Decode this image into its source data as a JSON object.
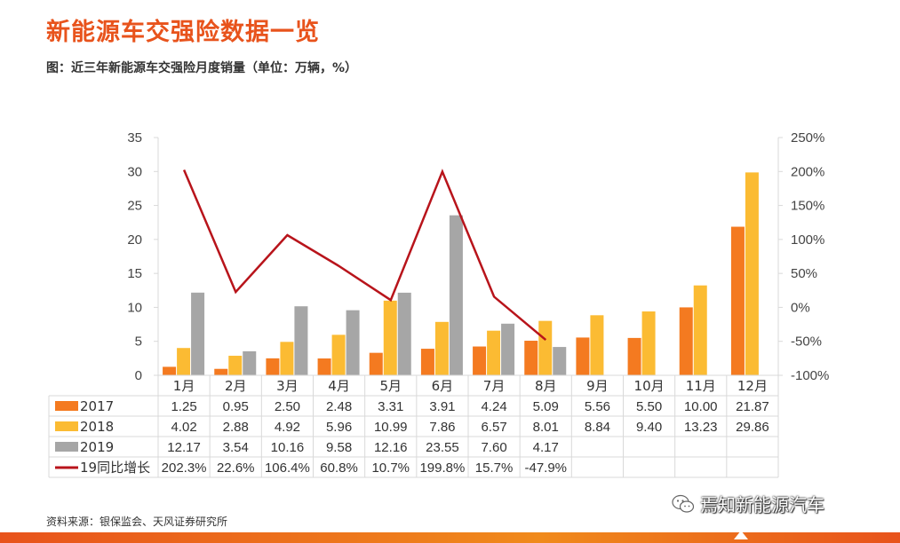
{
  "title": "新能源车交强险数据一览",
  "subtitle": "图：近三年新能源车交强险月度销量（单位：万辆，%）",
  "source": "资料来源：银保监会、天风证券研究所",
  "watermark": "焉知新能源汽车",
  "colors": {
    "title": "#e8531c",
    "s2017": "#f47a20",
    "s2018": "#fbbb33",
    "s2019": "#a6a6a6",
    "growth": "#b8141b",
    "grid": "#d9d9d9"
  },
  "chart_data": {
    "type": "bar",
    "categories": [
      "1月",
      "2月",
      "3月",
      "4月",
      "5月",
      "6月",
      "7月",
      "8月",
      "9月",
      "10月",
      "11月",
      "12月"
    ],
    "series": [
      {
        "name": "2017",
        "type": "bar",
        "values": [
          1.25,
          0.95,
          2.5,
          2.48,
          3.31,
          3.91,
          4.24,
          5.09,
          5.56,
          5.5,
          10.0,
          21.87
        ],
        "labels": [
          "1.25",
          "0.95",
          "2.50",
          "2.48",
          "3.31",
          "3.91",
          "4.24",
          "5.09",
          "5.56",
          "5.50",
          "10.00",
          "21.87"
        ]
      },
      {
        "name": "2018",
        "type": "bar",
        "values": [
          4.02,
          2.88,
          4.92,
          5.96,
          10.99,
          7.86,
          6.57,
          8.01,
          8.84,
          9.4,
          13.23,
          29.86
        ],
        "labels": [
          "4.02",
          "2.88",
          "4.92",
          "5.96",
          "10.99",
          "7.86",
          "6.57",
          "8.01",
          "8.84",
          "9.40",
          "13.23",
          "29.86"
        ]
      },
      {
        "name": "2019",
        "type": "bar",
        "values": [
          12.17,
          3.54,
          10.16,
          9.58,
          12.16,
          23.55,
          7.6,
          4.17,
          null,
          null,
          null,
          null
        ],
        "labels": [
          "12.17",
          "3.54",
          "10.16",
          "9.58",
          "12.16",
          "23.55",
          "7.60",
          "4.17",
          "",
          "",
          "",
          ""
        ]
      },
      {
        "name": "19同比增长",
        "type": "line",
        "axis": "right",
        "values": [
          202.3,
          22.6,
          106.4,
          60.8,
          10.7,
          199.8,
          15.7,
          -47.9,
          null,
          null,
          null,
          null
        ],
        "labels": [
          "202.3%",
          "22.6%",
          "106.4%",
          "60.8%",
          "10.7%",
          "199.8%",
          "15.7%",
          "-47.9%",
          "",
          "",
          "",
          ""
        ]
      }
    ],
    "ylim": [
      0,
      35
    ],
    "y_ticks": [
      0,
      5,
      10,
      15,
      20,
      25,
      30,
      35
    ],
    "y2lim": [
      -100,
      250
    ],
    "y2_ticks": [
      "-100%",
      "-50%",
      "0%",
      "50%",
      "100%",
      "150%",
      "200%",
      "250%"
    ],
    "legend": "data-table"
  }
}
